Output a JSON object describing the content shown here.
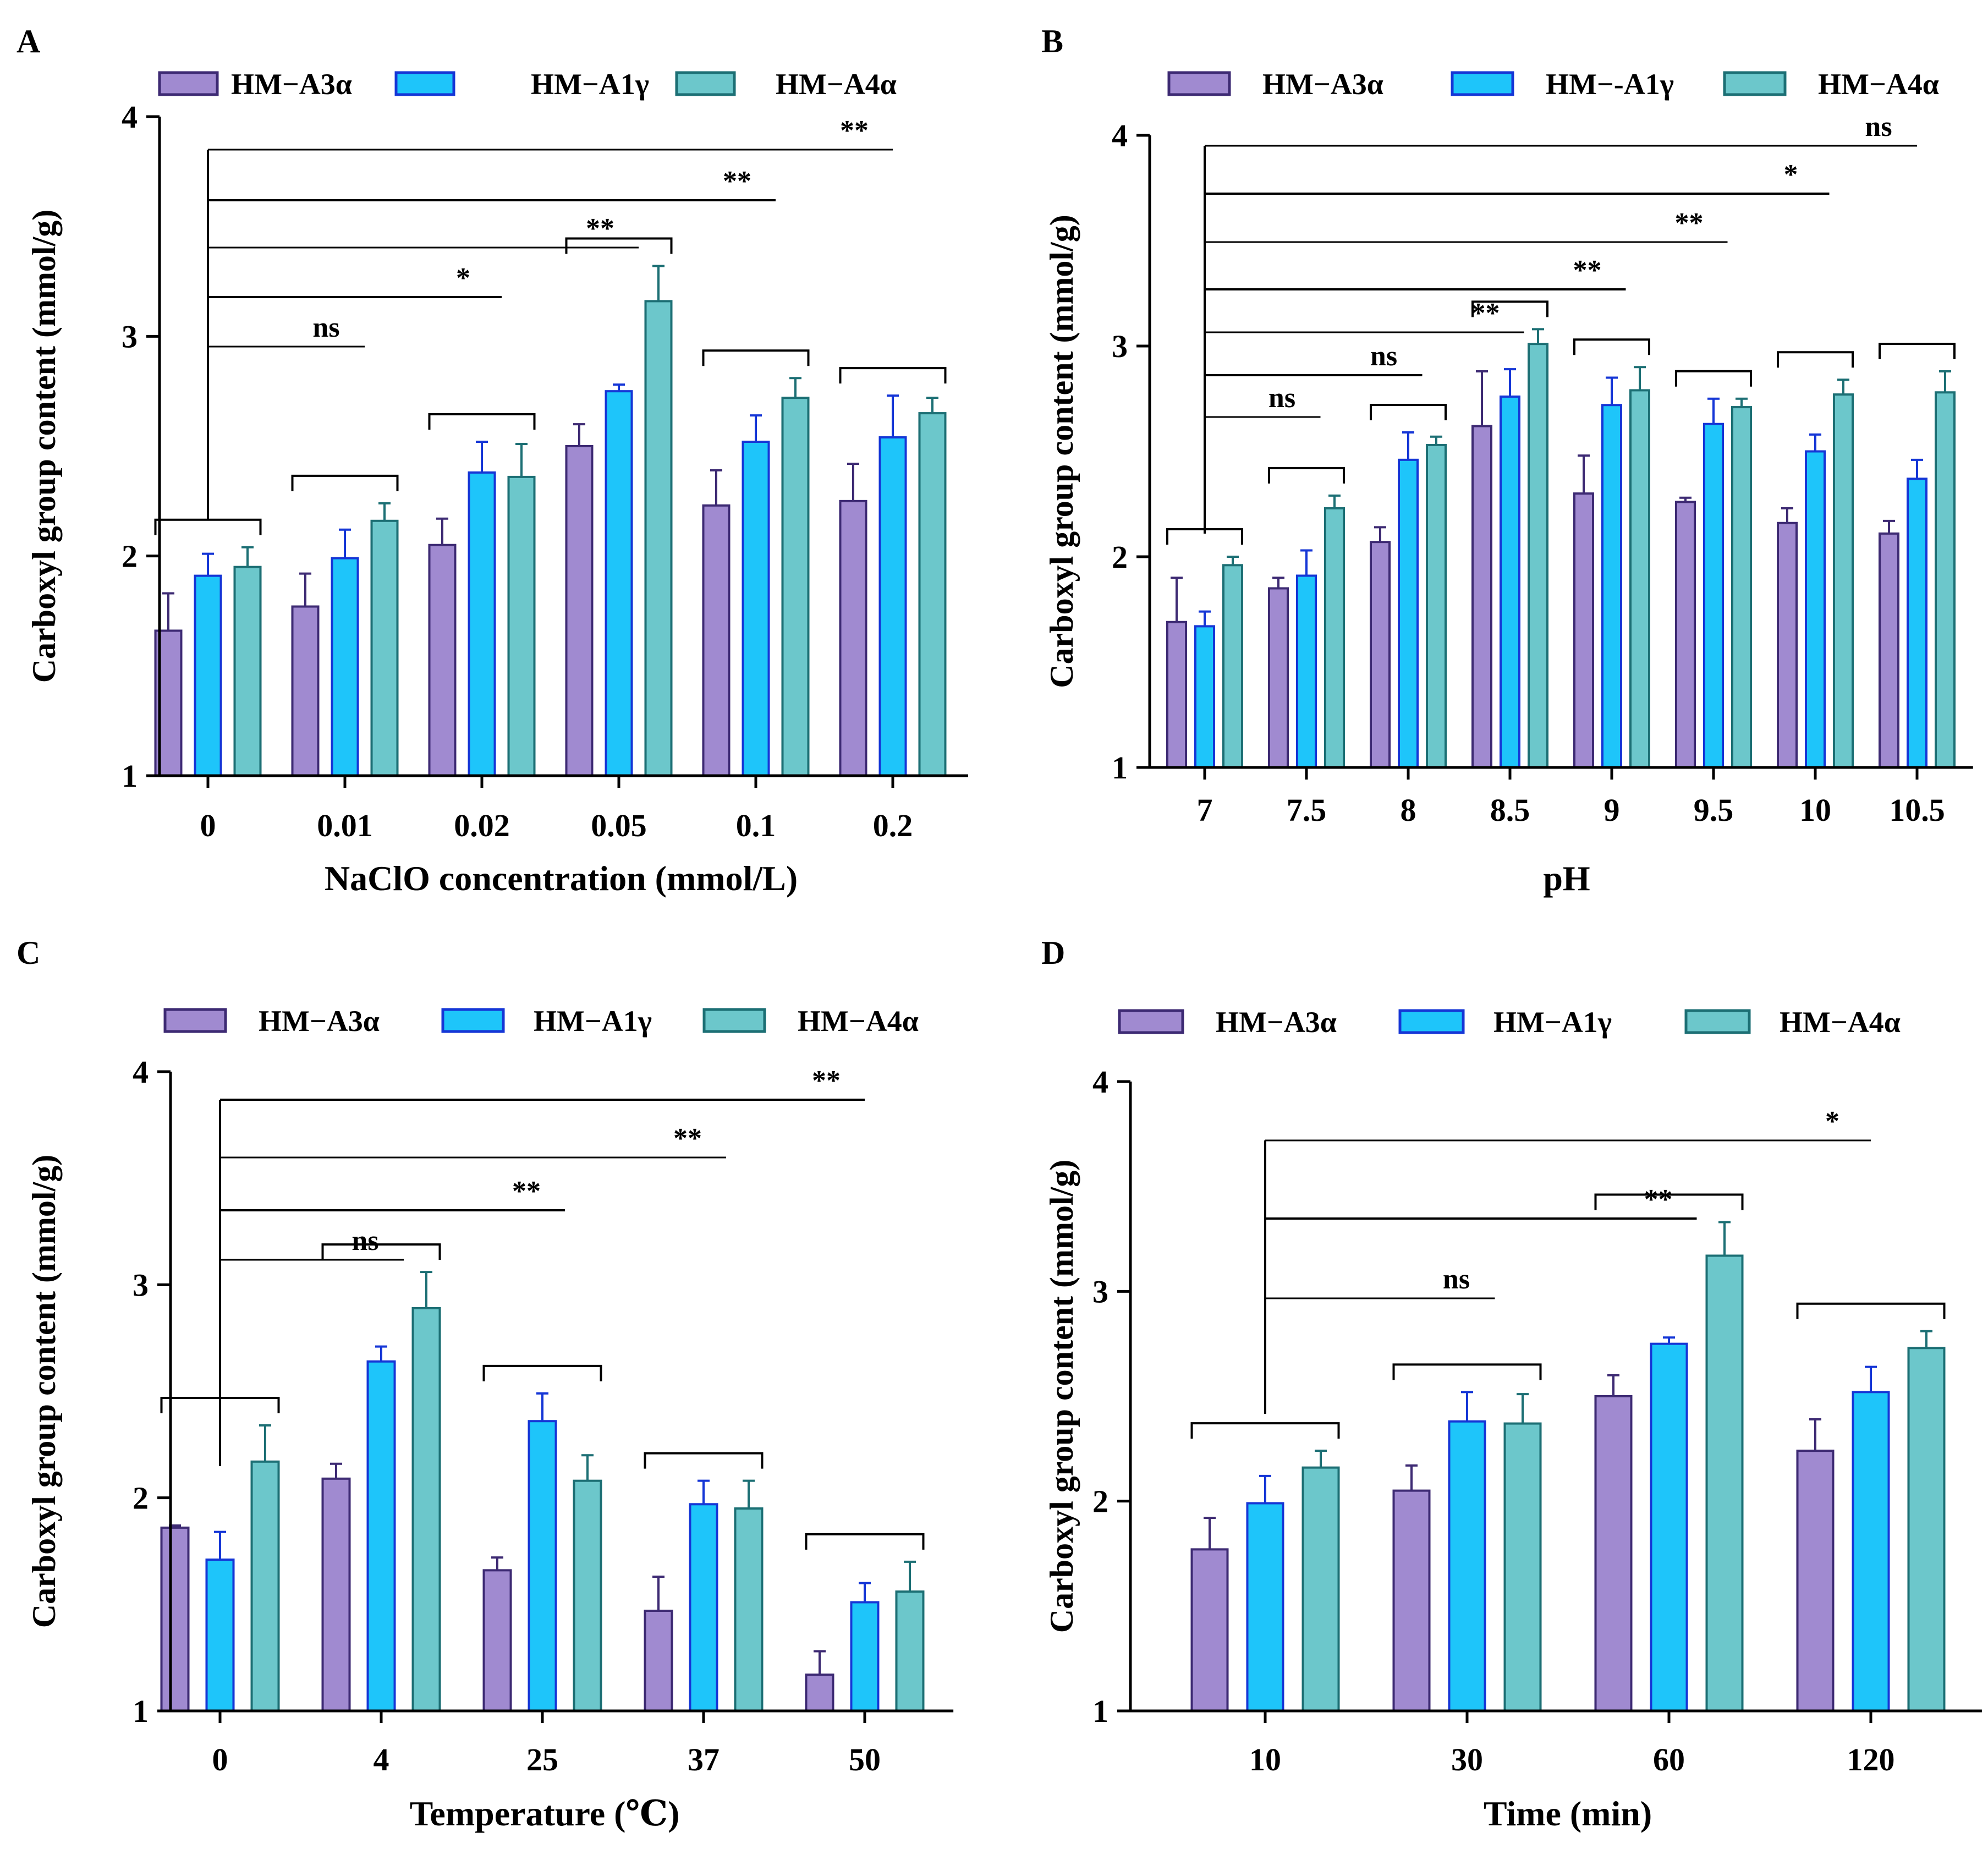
{
  "series_colors": {
    "HM-A3α": {
      "fill": "#a08ad0",
      "stroke": "#3d2a73"
    },
    "HM-A1γ": {
      "fill": "#1ec5fa",
      "stroke": "#1536d6"
    },
    "HM-A4α": {
      "fill": "#6cc7cb",
      "stroke": "#1c6f74"
    }
  },
  "chart_data": [
    {
      "panel": "A",
      "type": "bar",
      "legend": [
        "HM−A3α",
        "HM−A1γ",
        "HM−A4α"
      ],
      "ylabel": "Carboxyl group content (mmol/g)",
      "xlabel": "NaClO concentration (mmol/L)",
      "ylim": [
        1,
        4
      ],
      "yticks": [
        "1",
        "2",
        "3",
        "4"
      ],
      "categories": [
        "0",
        "0.01",
        "0.02",
        "0.05",
        "0.1",
        "0.2"
      ],
      "series": [
        {
          "name": "HM-A3α",
          "values": [
            1.66,
            1.77,
            2.05,
            2.5,
            2.23,
            2.25
          ],
          "errors": [
            0.17,
            0.15,
            0.12,
            0.1,
            0.16,
            0.17
          ]
        },
        {
          "name": "HM-A1γ",
          "values": [
            1.91,
            1.99,
            2.38,
            2.75,
            2.52,
            2.54
          ],
          "errors": [
            0.1,
            0.13,
            0.14,
            0.03,
            0.12,
            0.19
          ]
        },
        {
          "name": "HM-A4α",
          "values": [
            1.95,
            2.16,
            2.36,
            3.16,
            2.72,
            2.65
          ],
          "errors": [
            0.09,
            0.08,
            0.15,
            0.16,
            0.09,
            0.07
          ]
        }
      ],
      "significance": [
        {
          "label": "ns",
          "target": 1
        },
        {
          "label": "*",
          "target": 2
        },
        {
          "label": "**",
          "target": 3
        },
        {
          "label": "**",
          "target": 4
        },
        {
          "label": "**",
          "target": 5
        }
      ]
    },
    {
      "panel": "B",
      "type": "bar",
      "legend": [
        "HM−A3α",
        "HM−-A1γ",
        "HM−A4α"
      ],
      "ylabel": "Carboxyl group content (mmol/g)",
      "xlabel": "pH",
      "ylim": [
        1,
        4
      ],
      "yticks": [
        "1",
        "2",
        "3",
        "4"
      ],
      "categories": [
        "7",
        "7.5",
        "8",
        "8.5",
        "9",
        "9.5",
        "10",
        "10.5"
      ],
      "series": [
        {
          "name": "HM-A3α",
          "values": [
            1.69,
            1.85,
            2.07,
            2.62,
            2.3,
            2.26,
            2.16,
            2.11
          ],
          "errors": [
            0.21,
            0.05,
            0.07,
            0.26,
            0.18,
            0.02,
            0.07,
            0.06
          ]
        },
        {
          "name": "HM-A1γ",
          "values": [
            1.67,
            1.91,
            2.46,
            2.76,
            2.72,
            2.63,
            2.5,
            2.37
          ],
          "errors": [
            0.07,
            0.12,
            0.13,
            0.13,
            0.13,
            0.12,
            0.08,
            0.09
          ]
        },
        {
          "name": "HM-A4α",
          "values": [
            1.96,
            2.23,
            2.53,
            3.01,
            2.79,
            2.71,
            2.77,
            2.78
          ],
          "errors": [
            0.04,
            0.06,
            0.04,
            0.07,
            0.11,
            0.04,
            0.07,
            0.1
          ]
        }
      ],
      "significance": [
        {
          "label": "ns",
          "target": 1
        },
        {
          "label": "ns",
          "target": 2
        },
        {
          "label": "**",
          "target": 3
        },
        {
          "label": "**",
          "target": 4
        },
        {
          "label": "**",
          "target": 5
        },
        {
          "label": "*",
          "target": 6
        },
        {
          "label": "ns",
          "target": 7
        }
      ]
    },
    {
      "panel": "C",
      "type": "bar",
      "legend": [
        "HM−A3α",
        "HM−A1γ",
        "HM−A4α"
      ],
      "ylabel": "Carboxyl group content (mmol/g)",
      "xlabel": "Temperature (℃)",
      "ylim": [
        1,
        4
      ],
      "yticks": [
        "1",
        "2",
        "3",
        "4"
      ],
      "categories": [
        "0",
        "4",
        "25",
        "37",
        "50"
      ],
      "series": [
        {
          "name": "HM-A3α",
          "values": [
            1.86,
            2.09,
            1.66,
            1.47,
            1.17
          ],
          "errors": [
            0.01,
            0.07,
            0.06,
            0.16,
            0.11
          ]
        },
        {
          "name": "HM-A1γ",
          "values": [
            1.71,
            2.64,
            2.36,
            1.97,
            1.51
          ],
          "errors": [
            0.13,
            0.07,
            0.13,
            0.11,
            0.09
          ]
        },
        {
          "name": "HM-A4α",
          "values": [
            2.17,
            2.89,
            2.08,
            1.95,
            1.56
          ],
          "errors": [
            0.17,
            0.17,
            0.12,
            0.13,
            0.14
          ]
        }
      ],
      "significance": [
        {
          "label": "ns",
          "target": 1
        },
        {
          "label": "**",
          "target": 2
        },
        {
          "label": "**",
          "target": 3
        },
        {
          "label": "**",
          "target": 4
        }
      ]
    },
    {
      "panel": "D",
      "type": "bar",
      "legend": [
        "HM−A3α",
        "HM−A1γ",
        "HM−A4α"
      ],
      "ylabel": "Carboxyl group content (mmol/g)",
      "xlabel": "Time (min)",
      "ylim": [
        1,
        4
      ],
      "yticks": [
        "1",
        "2",
        "3",
        "4"
      ],
      "categories": [
        "10",
        "30",
        "60",
        "120"
      ],
      "series": [
        {
          "name": "HM-A3α",
          "values": [
            1.77,
            2.05,
            2.5,
            2.24
          ],
          "errors": [
            0.15,
            0.12,
            0.1,
            0.15
          ]
        },
        {
          "name": "HM-A1γ",
          "values": [
            1.99,
            2.38,
            2.75,
            2.52
          ],
          "errors": [
            0.13,
            0.14,
            0.03,
            0.12
          ]
        },
        {
          "name": "HM-A4α",
          "values": [
            2.16,
            2.37,
            3.17,
            2.73
          ],
          "errors": [
            0.08,
            0.14,
            0.16,
            0.08
          ]
        }
      ],
      "significance": [
        {
          "label": "ns",
          "target": 1
        },
        {
          "label": "**",
          "target": 2
        },
        {
          "label": "*",
          "target": 3
        }
      ]
    }
  ]
}
